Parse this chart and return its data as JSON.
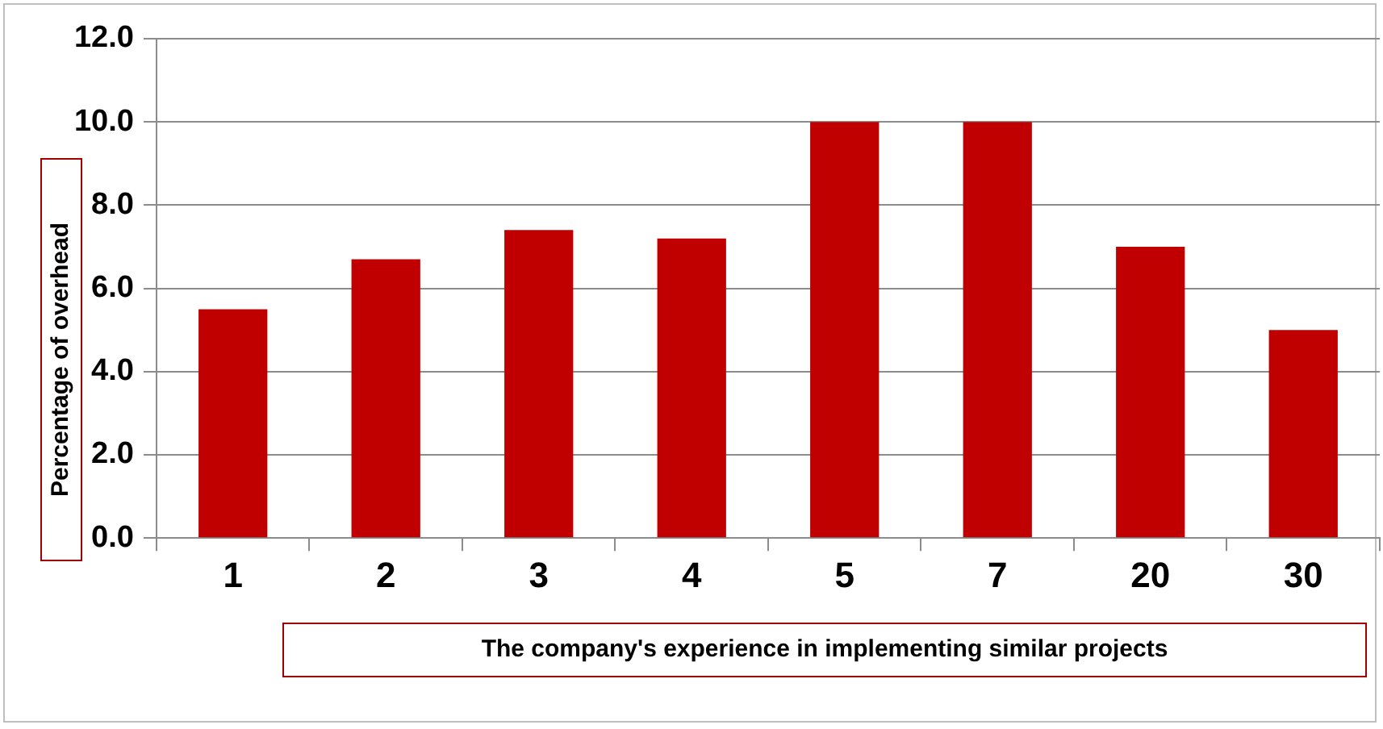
{
  "chart_data": {
    "type": "bar",
    "xlabel": "The company's experience in implementing similar projects",
    "ylabel": "Percentage of overhead",
    "categories": [
      "1",
      "2",
      "3",
      "4",
      "5",
      "7",
      "20",
      "30"
    ],
    "values": [
      5.5,
      6.7,
      7.4,
      7.2,
      10.0,
      10.0,
      7.0,
      5.0
    ],
    "color": "#c00000",
    "ylim": [
      0,
      12
    ],
    "yticks": [
      {
        "value": 0,
        "label": "0.0"
      },
      {
        "value": 2,
        "label": "2.0"
      },
      {
        "value": 4,
        "label": "4.0"
      },
      {
        "value": 6,
        "label": "6.0"
      },
      {
        "value": 8,
        "label": "8.0"
      },
      {
        "value": 10,
        "label": "10.0"
      },
      {
        "value": 12,
        "label": "12.0"
      }
    ],
    "grid": "y"
  }
}
